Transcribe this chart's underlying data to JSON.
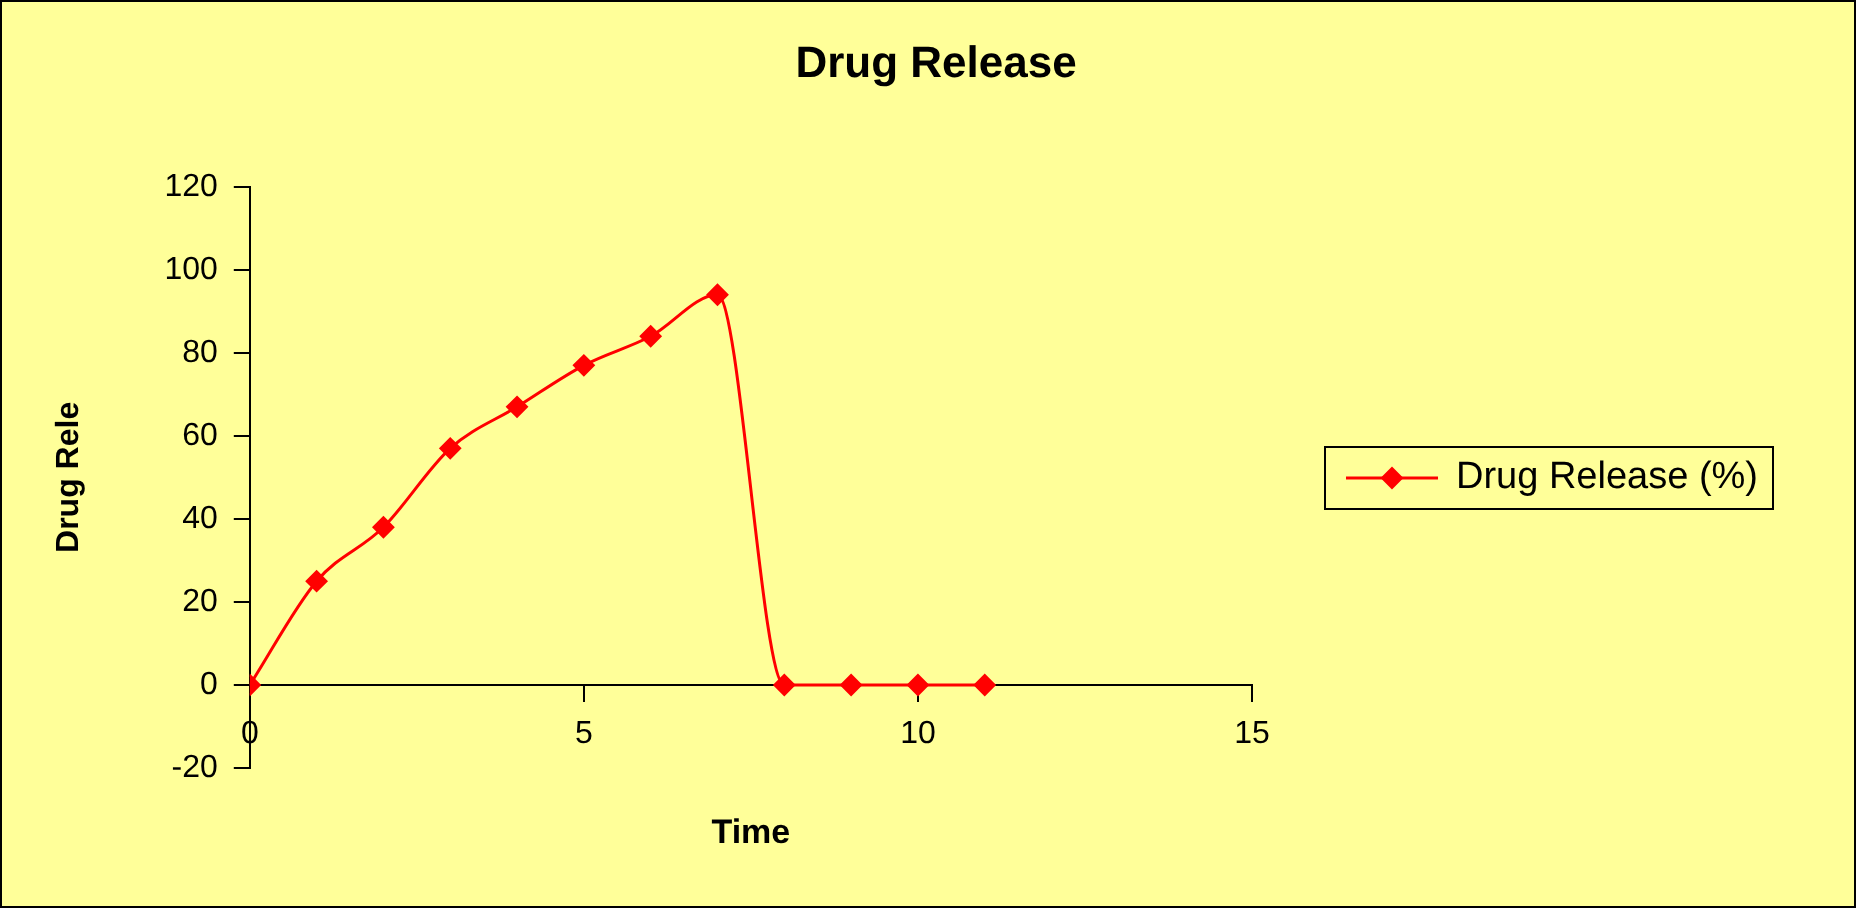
{
  "chart_data": {
    "type": "line",
    "title": "Drug Release",
    "xlabel": "Time",
    "ylabel": "Drug Rele",
    "x": [
      0,
      1,
      2,
      3,
      4,
      5,
      6,
      7,
      8,
      9,
      10,
      11
    ],
    "series": [
      {
        "name": "Drug Release (%)",
        "color": "#ff0000",
        "values": [
          0,
          25,
          38,
          57,
          67,
          77,
          84,
          94,
          0,
          0,
          0,
          0
        ]
      }
    ],
    "xlim": [
      0,
      15
    ],
    "xticks": [
      0,
      5,
      10,
      15
    ],
    "ylim": [
      -20,
      120
    ],
    "yticks": [
      -20,
      0,
      20,
      40,
      60,
      80,
      100,
      120
    ],
    "grid": false,
    "legend": "right",
    "marker": "diamond",
    "line_style": "solid"
  }
}
